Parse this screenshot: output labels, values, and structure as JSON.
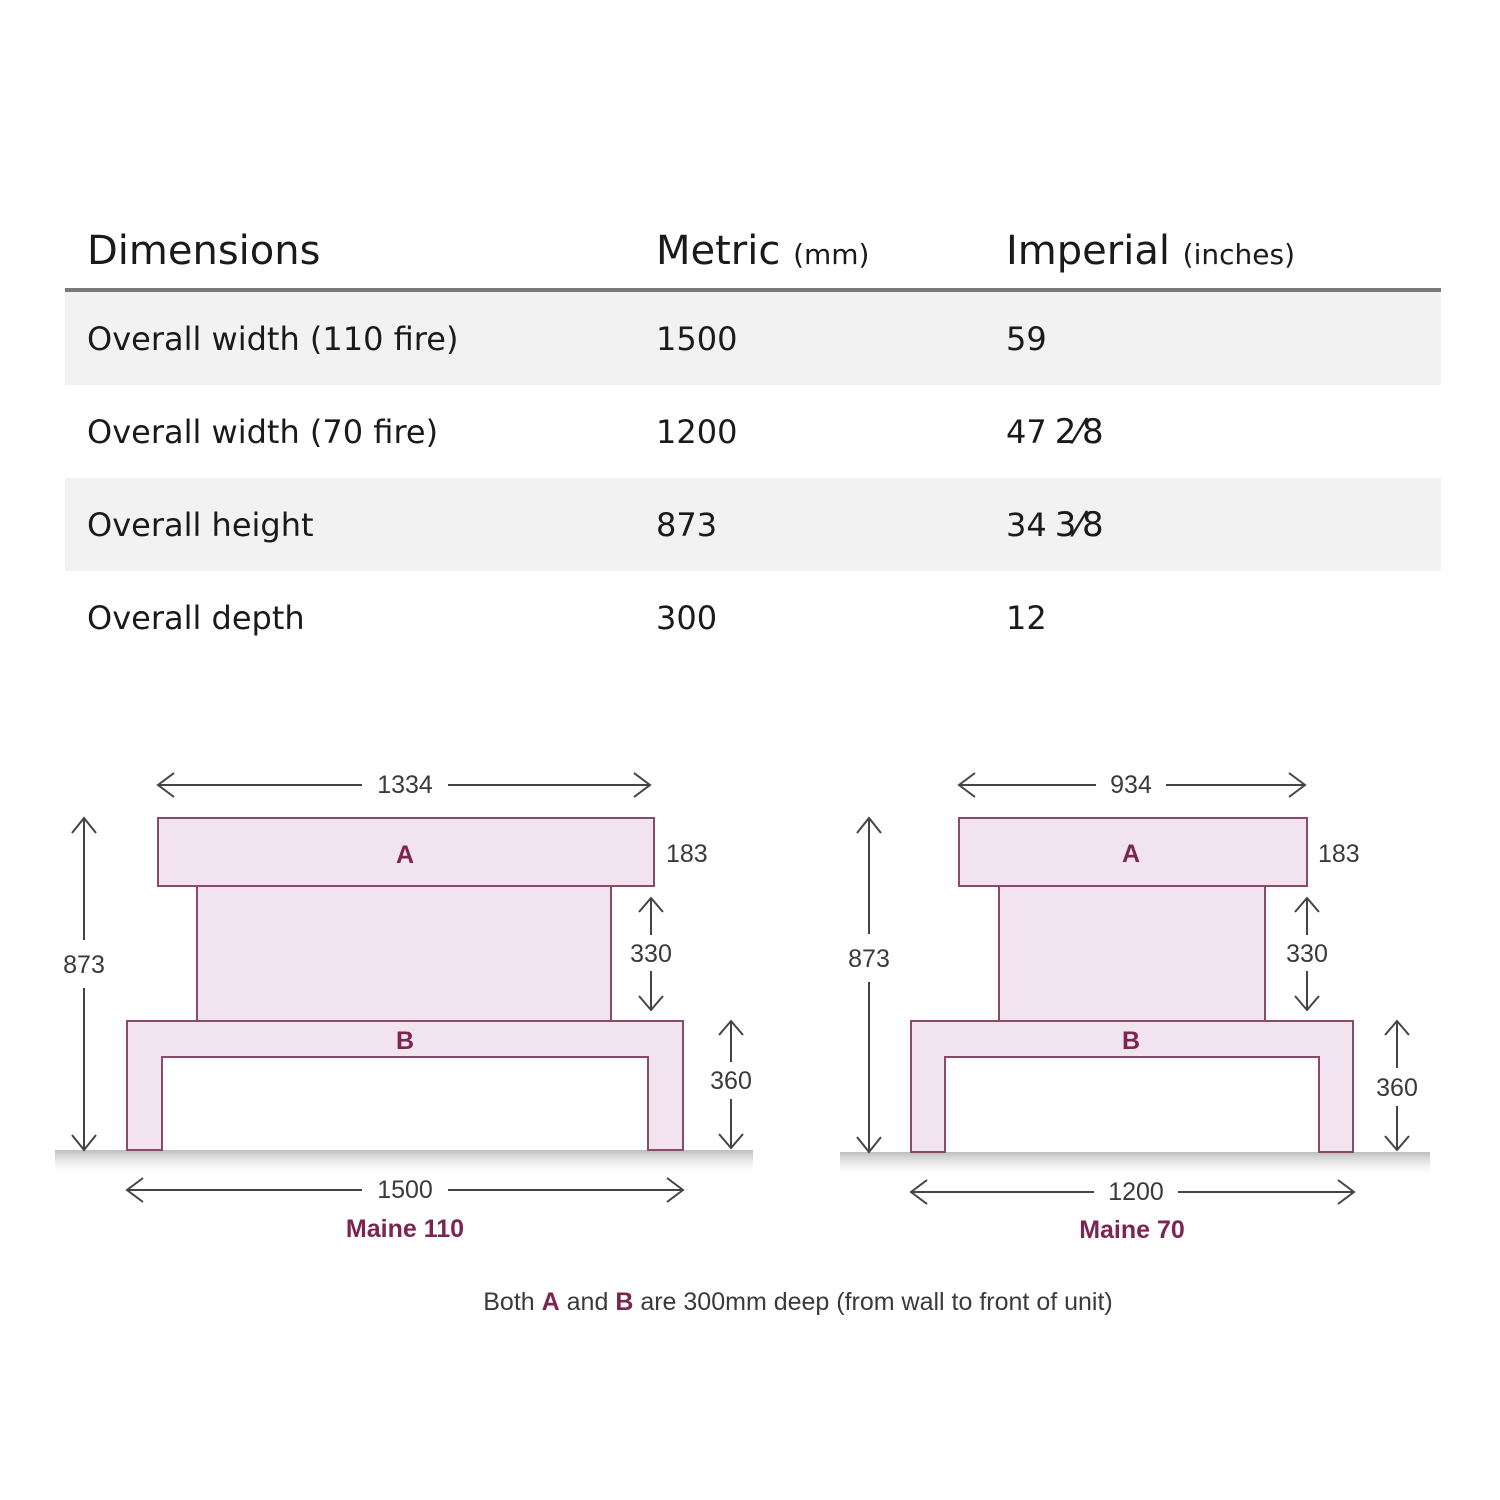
{
  "table": {
    "headers": {
      "dimensions": "Dimensions",
      "metric": "Metric",
      "metric_unit": "(mm)",
      "imperial": "Imperial",
      "imperial_unit": "(inches)"
    },
    "rows": [
      {
        "label": "Overall width (110 fire)",
        "metric": "1500",
        "imperial": "59",
        "fraction": ""
      },
      {
        "label": "Overall width (70 fire)",
        "metric": "1200",
        "imperial": "47",
        "fraction": "2⁄8"
      },
      {
        "label": "Overall height",
        "metric": "873",
        "imperial": "34",
        "fraction": "3⁄8"
      },
      {
        "label": "Overall depth",
        "metric": "300",
        "imperial": "12",
        "fraction": ""
      }
    ]
  },
  "diagrams": {
    "maine110": {
      "model": "Maine 110",
      "part_a": "A",
      "part_b": "B",
      "top_width": "1334",
      "a_height": "183",
      "mid_height": "330",
      "b_height": "360",
      "total_height": "873",
      "base_width": "1500"
    },
    "maine70": {
      "model": "Maine 70",
      "part_a": "A",
      "part_b": "B",
      "top_width": "934",
      "a_height": "183",
      "mid_height": "330",
      "b_height": "360",
      "total_height": "873",
      "base_width": "1200"
    }
  },
  "note": {
    "prefix": "Both",
    "a": "A",
    "and": "and",
    "b": "B",
    "suffix": "are 300mm deep (from wall to front of unit)"
  },
  "colors": {
    "fill": "#f2e4ee",
    "stroke": "#8a4a6a",
    "accent": "#7a2552"
  }
}
